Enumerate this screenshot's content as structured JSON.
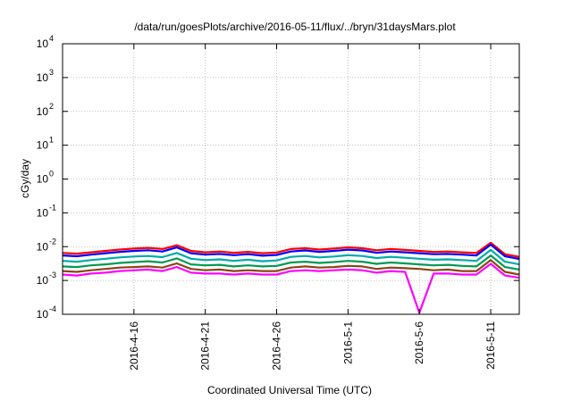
{
  "chart_data": {
    "type": "line",
    "title": "/data/run/goesPlots/archive/2016-05-11/flux/../bryn/31daysMars.plot",
    "xlabel": "Coordinated Universal Time (UTC)",
    "ylabel": "cGy/day",
    "yscale": "log",
    "ylim": [
      0.0001,
      10000
    ],
    "xlim": [
      "2016-04-11",
      "2016-05-13"
    ],
    "grid": true,
    "legend": "none",
    "y_ticks": [
      {
        "value": 0.0001,
        "base": "10",
        "exp": "-4"
      },
      {
        "value": 0.001,
        "base": "10",
        "exp": "-3"
      },
      {
        "value": 0.01,
        "base": "10",
        "exp": "-2"
      },
      {
        "value": 0.1,
        "base": "10",
        "exp": "-1"
      },
      {
        "value": 1,
        "base": "10",
        "exp": "0"
      },
      {
        "value": 10,
        "base": "10",
        "exp": "1"
      },
      {
        "value": 100,
        "base": "10",
        "exp": "2"
      },
      {
        "value": 1000,
        "base": "10",
        "exp": "3"
      },
      {
        "value": 10000,
        "base": "10",
        "exp": "4"
      }
    ],
    "x_ticks": [
      "2016-4-16",
      "2016-4-21",
      "2016-4-26",
      "2016-5-1",
      "2016-5-6",
      "2016-5-11"
    ],
    "x": [
      "2016-04-11",
      "2016-04-12",
      "2016-04-13",
      "2016-04-14",
      "2016-04-15",
      "2016-04-16",
      "2016-04-17",
      "2016-04-18",
      "2016-04-19",
      "2016-04-20",
      "2016-04-21",
      "2016-04-22",
      "2016-04-23",
      "2016-04-24",
      "2016-04-25",
      "2016-04-26",
      "2016-04-27",
      "2016-04-28",
      "2016-04-29",
      "2016-04-30",
      "2016-05-01",
      "2016-05-02",
      "2016-05-03",
      "2016-05-04",
      "2016-05-05",
      "2016-05-06",
      "2016-05-07",
      "2016-05-08",
      "2016-05-09",
      "2016-05-10",
      "2016-05-11",
      "2016-05-12",
      "2016-05-13"
    ],
    "series": [
      {
        "color": "#ff0000",
        "values": [
          0.0065,
          0.0062,
          0.0068,
          0.0075,
          0.0082,
          0.0088,
          0.0092,
          0.0085,
          0.011,
          0.0075,
          0.0068,
          0.0072,
          0.0066,
          0.007,
          0.0064,
          0.0067,
          0.0085,
          0.009,
          0.0082,
          0.0088,
          0.0095,
          0.009,
          0.0078,
          0.0085,
          0.008,
          0.0075,
          0.007,
          0.0072,
          0.0068,
          0.0065,
          0.013,
          0.006,
          0.005
        ]
      },
      {
        "color": "#0000ff",
        "values": [
          0.0055,
          0.0052,
          0.0058,
          0.0064,
          0.007,
          0.0075,
          0.0078,
          0.0072,
          0.0095,
          0.0064,
          0.0058,
          0.0061,
          0.0056,
          0.006,
          0.0054,
          0.0057,
          0.0072,
          0.0077,
          0.007,
          0.0075,
          0.0081,
          0.0077,
          0.0066,
          0.0072,
          0.0068,
          0.0064,
          0.006,
          0.0061,
          0.0058,
          0.0055,
          0.0115,
          0.0052,
          0.0043
        ]
      },
      {
        "color": "#00aaaa",
        "values": [
          0.0038,
          0.0036,
          0.004,
          0.0044,
          0.0048,
          0.0051,
          0.0053,
          0.0049,
          0.0065,
          0.0044,
          0.004,
          0.0042,
          0.0038,
          0.0041,
          0.0037,
          0.0039,
          0.005,
          0.0053,
          0.0048,
          0.0051,
          0.0056,
          0.0053,
          0.0046,
          0.005,
          0.0047,
          0.0044,
          0.0041,
          0.0042,
          0.004,
          0.0038,
          0.008,
          0.0036,
          0.003
        ]
      },
      {
        "color": "#009955",
        "values": [
          0.0026,
          0.0025,
          0.0028,
          0.003,
          0.0033,
          0.0035,
          0.0037,
          0.0034,
          0.0045,
          0.003,
          0.0028,
          0.0029,
          0.0026,
          0.0028,
          0.0026,
          0.0027,
          0.0034,
          0.0036,
          0.0033,
          0.0035,
          0.0038,
          0.0036,
          0.0031,
          0.0034,
          0.0032,
          0.003,
          0.0028,
          0.0029,
          0.0027,
          0.0026,
          0.0055,
          0.0025,
          0.0021
        ]
      },
      {
        "color": "#8b4513",
        "values": [
          0.0019,
          0.0018,
          0.002,
          0.0022,
          0.0024,
          0.0025,
          0.0026,
          0.0024,
          0.0032,
          0.0022,
          0.002,
          0.0021,
          0.0019,
          0.002,
          0.0019,
          0.0019,
          0.0024,
          0.0026,
          0.0024,
          0.0025,
          0.0027,
          0.0026,
          0.0022,
          0.0024,
          0.0023,
          0.0022,
          0.002,
          0.0021,
          0.0019,
          0.0019,
          0.004,
          0.0018,
          0.0015
        ]
      },
      {
        "color": "#ff00ff",
        "values": [
          0.0015,
          0.0014,
          0.0016,
          0.0017,
          0.0019,
          0.002,
          0.0021,
          0.0019,
          0.0025,
          0.0017,
          0.0016,
          0.0016,
          0.0015,
          0.0016,
          0.0015,
          0.0015,
          0.0019,
          0.002,
          0.0019,
          0.002,
          0.0021,
          0.002,
          0.0017,
          0.0019,
          0.0018,
          0.00011,
          0.0016,
          0.0016,
          0.0015,
          0.0015,
          0.0031,
          0.0014,
          0.0012
        ]
      }
    ]
  }
}
